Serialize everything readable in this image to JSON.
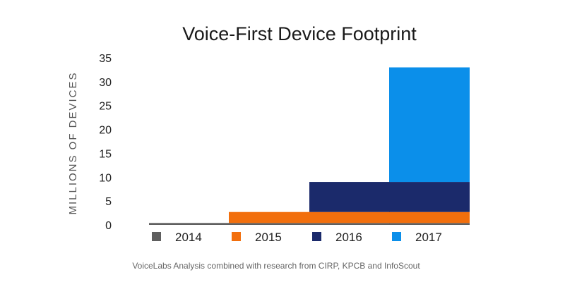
{
  "chart_data": {
    "type": "bar",
    "stacked": true,
    "title": "Voice-First Device Footprint",
    "xlabel": "",
    "ylabel": "MILLIONS OF DEVICES",
    "ylim": [
      0,
      35
    ],
    "yticks": [
      0,
      5,
      10,
      15,
      20,
      25,
      30,
      35
    ],
    "grid": false,
    "legend_position": "bottom",
    "categories": [
      "2014",
      "2015",
      "2016",
      "2017"
    ],
    "series": [
      {
        "name": "2014",
        "color": "#5f5f5f",
        "values": [
          0.4,
          0.4,
          0.4,
          0.4
        ]
      },
      {
        "name": "2015",
        "color": "#f26f0d",
        "values": [
          0,
          2.3,
          2.3,
          2.3
        ]
      },
      {
        "name": "2016",
        "color": "#1b2a6b",
        "values": [
          0,
          0,
          6.3,
          6.3
        ]
      },
      {
        "name": "2017",
        "color": "#0b8fea",
        "values": [
          0,
          0,
          0,
          24.0
        ]
      }
    ],
    "source": "VoiceLabs Analysis combined with research from CIRP, KPCB and InfoScout"
  }
}
